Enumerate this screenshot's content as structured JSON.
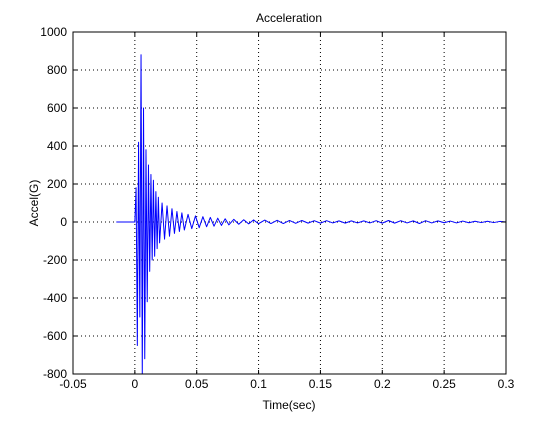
{
  "chart_data": {
    "type": "line",
    "title": "Acceleration",
    "xlabel": "Time(sec)",
    "ylabel": "Accel(G)",
    "xlim": [
      -0.05,
      0.3
    ],
    "ylim": [
      -800,
      1000
    ],
    "xticks": [
      -0.05,
      0,
      0.05,
      0.1,
      0.15,
      0.2,
      0.25,
      0.3
    ],
    "xtick_labels": [
      "-0.05",
      "0",
      "0.05",
      "0.1",
      "0.15",
      "0.2",
      "0.25",
      "0.3"
    ],
    "yticks": [
      -800,
      -600,
      -400,
      -200,
      0,
      200,
      400,
      600,
      800,
      1000
    ],
    "ytick_labels": [
      "-800",
      "-600",
      "-400",
      "-200",
      "0",
      "200",
      "400",
      "600",
      "800",
      "1000"
    ],
    "grid": true,
    "grid_style": "dotted",
    "series": [
      {
        "color": "#0000ff",
        "x": [
          -0.015,
          0.0,
          0.001,
          0.002,
          0.003,
          0.004,
          0.005,
          0.006,
          0.007,
          0.008,
          0.009,
          0.01,
          0.011,
          0.012,
          0.013,
          0.014,
          0.015,
          0.016,
          0.017,
          0.018,
          0.019,
          0.02,
          0.022,
          0.024,
          0.026,
          0.028,
          0.03,
          0.032,
          0.034,
          0.036,
          0.038,
          0.04,
          0.043,
          0.046,
          0.049,
          0.052,
          0.055,
          0.058,
          0.061,
          0.064,
          0.067,
          0.07,
          0.073,
          0.076,
          0.08,
          0.084,
          0.088,
          0.092,
          0.096,
          0.1,
          0.105,
          0.11,
          0.115,
          0.12,
          0.125,
          0.13,
          0.135,
          0.14,
          0.145,
          0.15,
          0.155,
          0.16,
          0.165,
          0.17,
          0.175,
          0.18,
          0.185,
          0.19,
          0.195,
          0.2,
          0.205,
          0.21,
          0.215,
          0.22,
          0.225,
          0.23,
          0.235,
          0.24,
          0.245,
          0.25,
          0.255,
          0.26,
          0.265,
          0.27,
          0.275,
          0.28,
          0.285,
          0.29,
          0.295,
          0.3
        ],
        "y": [
          0,
          0,
          180,
          -650,
          420,
          -500,
          880,
          -800,
          600,
          -720,
          380,
          -420,
          300,
          -260,
          250,
          -200,
          220,
          -180,
          160,
          -140,
          130,
          -110,
          100,
          -90,
          85,
          -75,
          70,
          -60,
          55,
          -50,
          48,
          -42,
          40,
          -35,
          32,
          -30,
          28,
          -25,
          24,
          -22,
          20,
          -18,
          17,
          -15,
          14,
          -12,
          12,
          -10,
          11,
          -9,
          10,
          -8,
          9,
          -8,
          8,
          -7,
          8,
          -6,
          7,
          -6,
          7,
          -5,
          6,
          -6,
          6,
          -5,
          6,
          -5,
          7,
          -6,
          8,
          -6,
          7,
          -5,
          6,
          -8,
          7,
          -5,
          6,
          -4,
          5,
          -5,
          5,
          -4,
          4,
          -3,
          4,
          -3,
          3,
          0
        ]
      }
    ]
  }
}
